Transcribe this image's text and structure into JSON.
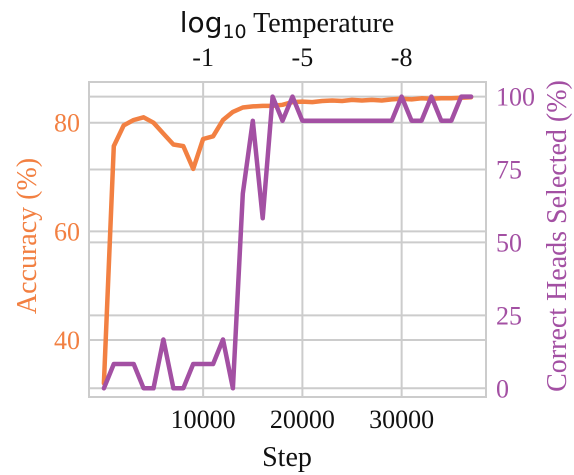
{
  "chart_data": {
    "type": "line",
    "xlabel": "Step",
    "top_axis_label": {
      "prefix": "log",
      "subscript": "10",
      "suffix": " Temperature"
    },
    "top_ticks": [
      {
        "x": 10000,
        "label": "-1"
      },
      {
        "x": 20000,
        "label": "-5"
      },
      {
        "x": 30000,
        "label": "-8"
      }
    ],
    "x_ticks": [
      10000,
      20000,
      30000
    ],
    "x_tick_labels": [
      "10000",
      "20000",
      "30000"
    ],
    "xlim": [
      -1500,
      38500
    ],
    "left_axis": {
      "label": "Accuracy (%)",
      "ylim": [
        29.5,
        87.5
      ],
      "ticks": [
        40,
        60,
        80
      ],
      "tick_labels": [
        "40",
        "60",
        "80"
      ],
      "color": "#f28042"
    },
    "right_axis": {
      "label": "Correct Heads Selected (%)",
      "ylim": [
        -3,
        105
      ],
      "ticks": [
        0,
        25,
        50,
        75,
        100
      ],
      "tick_labels": [
        "0",
        "25",
        "50",
        "75",
        "100"
      ],
      "color": "#a350a3"
    },
    "grid": true,
    "series": [
      {
        "axis": "left",
        "color": "#f28042",
        "x": [
          0,
          1000,
          2000,
          3000,
          4000,
          5000,
          6000,
          7000,
          8000,
          9000,
          10000,
          11000,
          12000,
          13000,
          14000,
          15000,
          16000,
          17000,
          18000,
          19000,
          20000,
          21000,
          22000,
          23000,
          24000,
          25000,
          26000,
          27000,
          28000,
          29000,
          30000,
          31000,
          32000,
          33000,
          34000,
          35000,
          36000,
          37000
        ],
        "values": [
          32,
          75.7,
          79.5,
          80.5,
          81,
          80,
          78,
          76,
          75.7,
          71.5,
          77,
          77.5,
          80.5,
          82,
          82.8,
          83,
          83.1,
          83.1,
          83.3,
          83.8,
          83.9,
          83.8,
          84,
          84.1,
          84,
          84.2,
          84.1,
          84.2,
          84.1,
          84.3,
          84.4,
          84.3,
          84.5,
          84.4,
          84.5,
          84.5,
          84.6,
          84.7
        ]
      },
      {
        "axis": "right",
        "color": "#a350a3",
        "x": [
          0,
          1000,
          2000,
          3000,
          4000,
          5000,
          6000,
          7000,
          8000,
          9000,
          10000,
          11000,
          12000,
          13000,
          14000,
          15000,
          16000,
          17000,
          18000,
          19000,
          20000,
          21000,
          22000,
          23000,
          24000,
          25000,
          26000,
          27000,
          28000,
          29000,
          30000,
          31000,
          32000,
          33000,
          34000,
          35000,
          36000,
          37000
        ],
        "values": [
          0,
          8.3,
          8.3,
          8.3,
          0,
          0,
          16.7,
          0,
          0,
          8.3,
          8.3,
          8.3,
          16.7,
          0,
          66.7,
          91.7,
          58.3,
          100,
          91.7,
          100,
          91.7,
          91.7,
          91.7,
          91.7,
          91.7,
          91.7,
          91.7,
          91.7,
          91.7,
          91.7,
          100,
          91.7,
          91.7,
          100,
          91.7,
          91.7,
          100,
          100
        ]
      }
    ]
  }
}
